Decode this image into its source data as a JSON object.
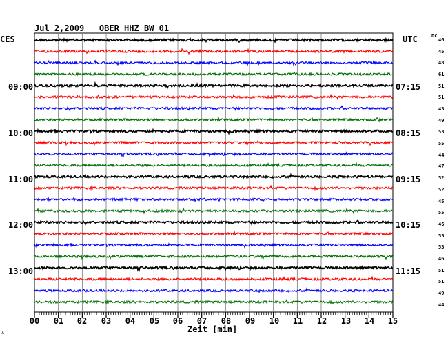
{
  "title": "Jul 2,2009   OBER HHZ BW 01",
  "left_header": "CES",
  "right_header": "UTC",
  "dc_header": "DC",
  "left_times": [
    "09:00",
    "10:00",
    "11:00",
    "12:00",
    "13:00"
  ],
  "right_times": [
    "07:15",
    "08:15",
    "09:15",
    "10:15",
    "11:15"
  ],
  "dc_values": [
    "46",
    "45",
    "48",
    "61",
    "51",
    "51",
    "43",
    "49",
    "53",
    "55",
    "44",
    "47",
    "52",
    "52",
    "45",
    "55",
    "46",
    "55",
    "53",
    "46",
    "51",
    "51",
    "49",
    "44"
  ],
  "x_ticks": [
    "00",
    "01",
    "02",
    "03",
    "04",
    "05",
    "06",
    "07",
    "08",
    "09",
    "10",
    "11",
    "12",
    "13",
    "14",
    "15"
  ],
  "x_label": "Zeit [min]",
  "corner_mark": "∧",
  "trace_colors": [
    "#000000",
    "#ff0000",
    "#0000ff",
    "#007000"
  ]
}
